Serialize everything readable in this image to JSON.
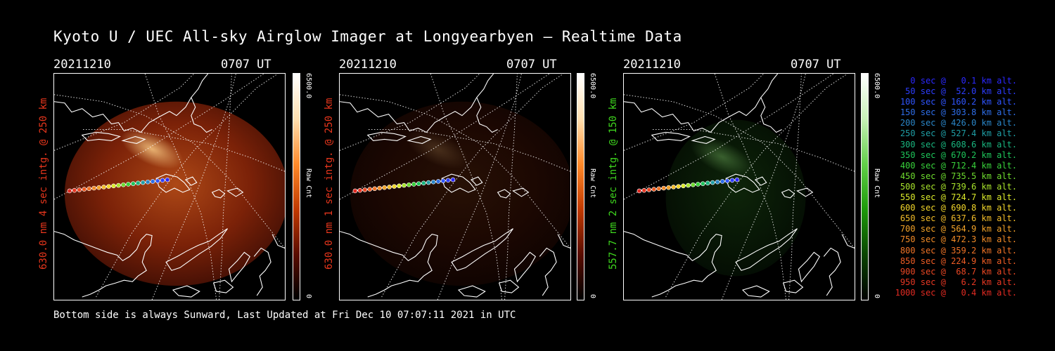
{
  "title": "Kyoto U / UEC All-sky Airglow Imager at Longyearbyen — Realtime Data",
  "footer": "Bottom side is always Sunward, Last Updated at Fri Dec 10 07:07:11 2021 in UTC",
  "panels": [
    {
      "date": "20211210",
      "time": "0707 UT",
      "ylabel": "630.0 nm 4 sec intg. @ 250 km",
      "label_color": "#e8361c",
      "cbar_max": "6500.0",
      "cbar_min": "0",
      "cbar_unit": "Raw Cnt",
      "channel": "red",
      "intensity": 0.8
    },
    {
      "date": "20211210",
      "time": "0707 UT",
      "ylabel": "630.0 nm 1 sec intg. @ 250 km",
      "label_color": "#e8361c",
      "cbar_max": "6500.0",
      "cbar_min": "0",
      "cbar_unit": "Raw Cnt",
      "channel": "red",
      "intensity": 0.18
    },
    {
      "date": "20211210",
      "time": "0707 UT",
      "ylabel": "557.7 nm 2 sec intg. @ 150 km",
      "label_color": "#3fd81e",
      "cbar_max": "6500.0",
      "cbar_min": "0",
      "cbar_unit": "Raw Cnt",
      "channel": "green",
      "intensity": 0.3
    }
  ],
  "legend": [
    {
      "text": "0 sec @   0.1 km alt.",
      "color": "#2b28ff"
    },
    {
      "text": "50 sec @  52.0 km alt.",
      "color": "#2d3dff"
    },
    {
      "text": "100 sec @ 160.2 km alt.",
      "color": "#2f55ff"
    },
    {
      "text": "150 sec @ 303.8 km alt.",
      "color": "#2e6ee8"
    },
    {
      "text": "200 sec @ 426.0 km alt.",
      "color": "#2a86c8"
    },
    {
      "text": "250 sec @ 527.4 km alt.",
      "color": "#1f9fa6"
    },
    {
      "text": "300 sec @ 608.6 km alt.",
      "color": "#19b67f"
    },
    {
      "text": "350 sec @ 670.2 km alt.",
      "color": "#1ec65a"
    },
    {
      "text": "400 sec @ 712.4 km alt.",
      "color": "#38d23b"
    },
    {
      "text": "450 sec @ 735.5 km alt.",
      "color": "#6edc2e"
    },
    {
      "text": "500 sec @ 739.6 km alt.",
      "color": "#a9e52b"
    },
    {
      "text": "550 sec @ 724.7 km alt.",
      "color": "#dbea2a"
    },
    {
      "text": "600 sec @ 690.8 km alt.",
      "color": "#f3d72a"
    },
    {
      "text": "650 sec @ 637.6 km alt.",
      "color": "#f3bd29"
    },
    {
      "text": "700 sec @ 564.9 km alt.",
      "color": "#f3a328"
    },
    {
      "text": "750 sec @ 472.3 km alt.",
      "color": "#f28b27"
    },
    {
      "text": "800 sec @ 359.2 km alt.",
      "color": "#f07326"
    },
    {
      "text": "850 sec @ 224.9 km alt.",
      "color": "#ee5d25"
    },
    {
      "text": "900 sec @  68.7 km alt.",
      "color": "#ea4724"
    },
    {
      "text": "950 sec @   6.2 km alt.",
      "color": "#e73723"
    },
    {
      "text": "1000 sec @   0.4 km alt.",
      "color": "#e22a22"
    }
  ]
}
